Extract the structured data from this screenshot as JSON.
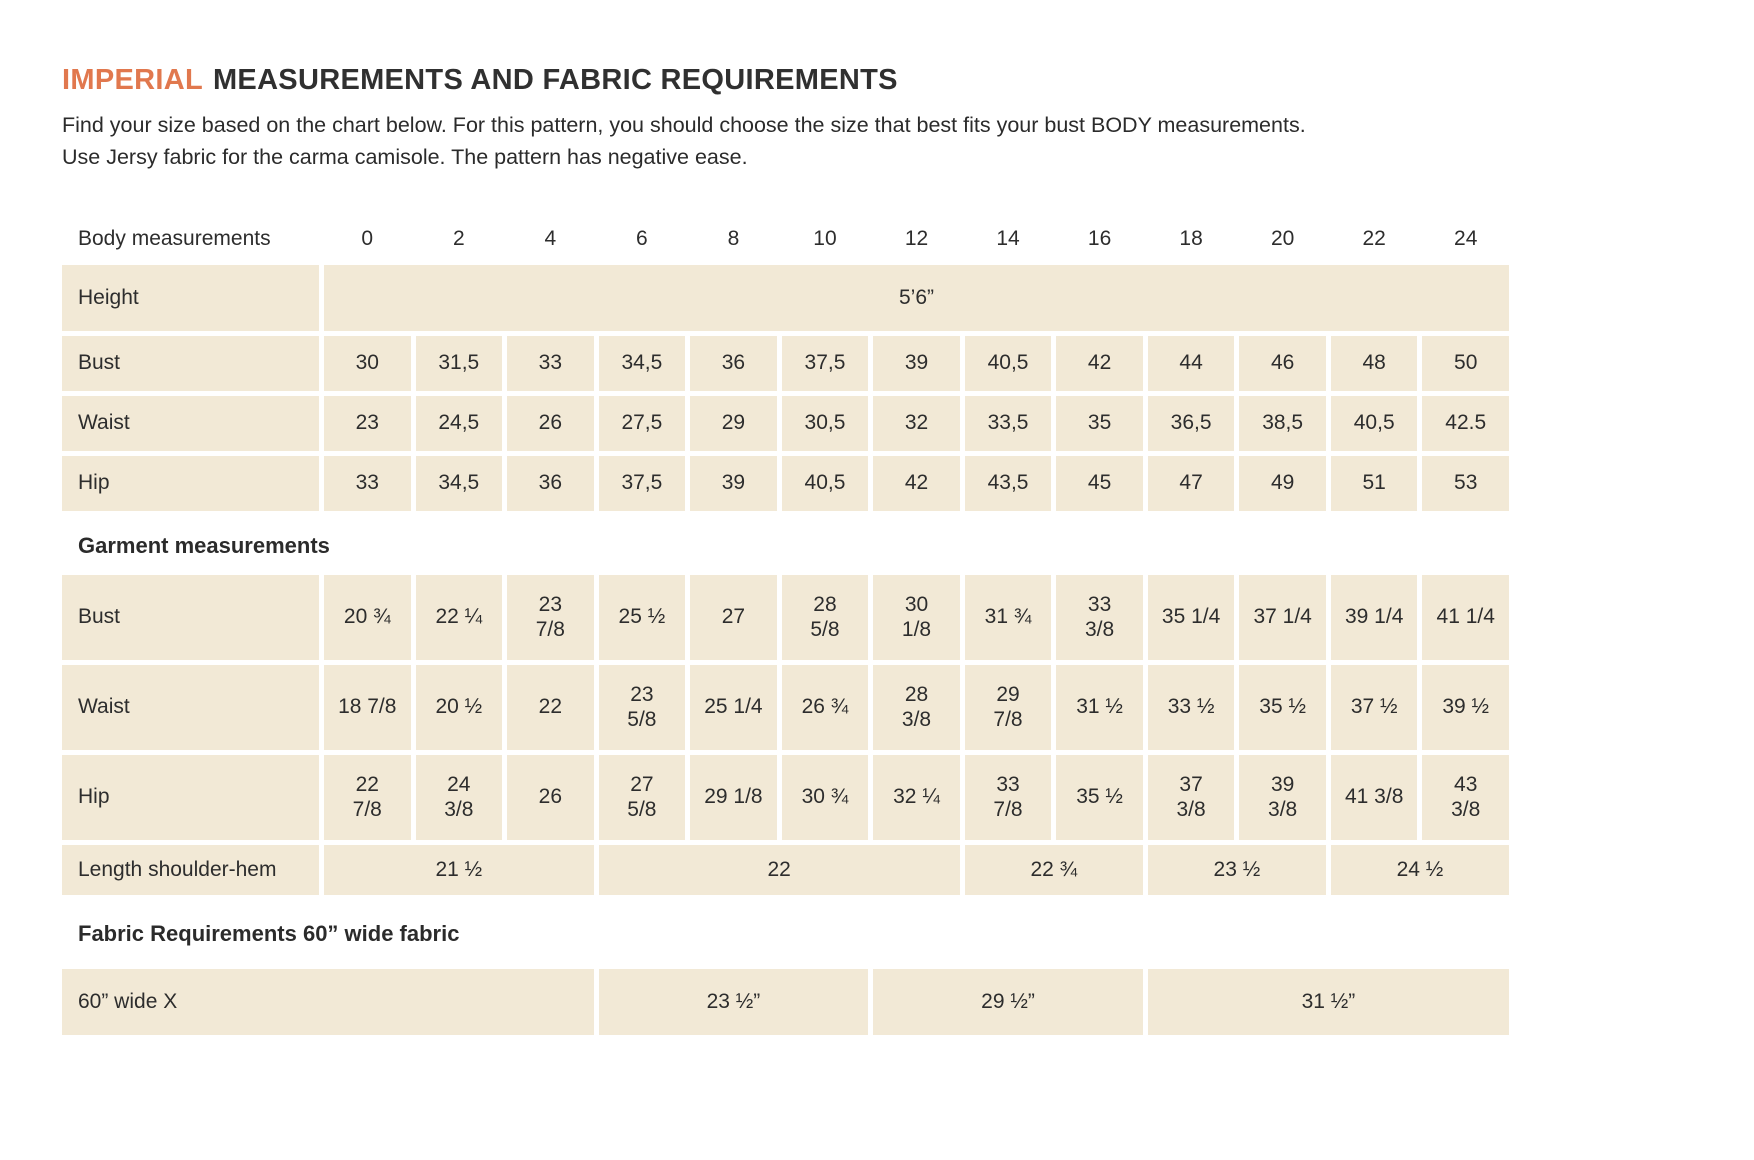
{
  "colors": {
    "accent": "#E1784E",
    "cell_bg": "#F2E9D6",
    "text": "#2D2D2D"
  },
  "header": {
    "title_accent": "IMPERIAL",
    "title_rest": "MEASUREMENTS AND FABRIC REQUIREMENTS",
    "intro_line1": "Find your size based on the chart below. For this pattern, you should choose the size that best fits your bust BODY measurements.",
    "intro_line2": "Use Jersy fabric for the carma camisole. The pattern has negative ease."
  },
  "table": {
    "header_label": "Body measurements",
    "sizes": [
      "0",
      "2",
      "4",
      "6",
      "8",
      "10",
      "12",
      "14",
      "16",
      "18",
      "20",
      "22",
      "24"
    ],
    "body_rows": [
      {
        "label": "Height",
        "merged": "5’6”"
      },
      {
        "label": "Bust",
        "values": [
          "30",
          "31,5",
          "33",
          "34,5",
          "36",
          "37,5",
          "39",
          "40,5",
          "42",
          "44",
          "46",
          "48",
          "50"
        ]
      },
      {
        "label": "Waist",
        "values": [
          "23",
          "24,5",
          "26",
          "27,5",
          "29",
          "30,5",
          "32",
          "33,5",
          "35",
          "36,5",
          "38,5",
          "40,5",
          "42.5"
        ]
      },
      {
        "label": "Hip",
        "values": [
          "33",
          "34,5",
          "36",
          "37,5",
          "39",
          "40,5",
          "42",
          "43,5",
          "45",
          "47",
          "49",
          "51",
          "53"
        ]
      }
    ],
    "garment_section_label": "Garment measurements",
    "garment_rows": [
      {
        "label": "Bust",
        "values": [
          "20 ¾",
          "22 ¼",
          "23\n7/8",
          "25 ½",
          "27",
          "28\n5/8",
          "30\n1/8",
          "31 ¾",
          "33\n3/8",
          "35 1/4",
          "37 1/4",
          "39 1/4",
          "41 1/4"
        ]
      },
      {
        "label": "Waist",
        "values": [
          "18 7/8",
          "20 ½",
          "22",
          "23\n5/8",
          "25 1/4",
          "26 ¾",
          "28\n3/8",
          "29\n7/8",
          "31 ½",
          "33 ½",
          "35 ½",
          "37 ½",
          "39 ½"
        ]
      },
      {
        "label": "Hip",
        "values": [
          "22\n7/8",
          "24\n3/8",
          "26",
          "27\n5/8",
          "29 1/8",
          "30 ¾",
          "32 ¼",
          "33\n7/8",
          "35 ½",
          "37\n3/8",
          "39\n3/8",
          "41 3/8",
          "43\n3/8"
        ]
      }
    ],
    "length_row": {
      "label": "Length shoulder-hem",
      "segments": [
        {
          "text": "21 ½",
          "span": 3
        },
        {
          "text": "22",
          "span": 4
        },
        {
          "text": "22 ¾",
          "span": 2
        },
        {
          "text": "23 ½",
          "span": 2
        },
        {
          "text": "24 ½",
          "span": 2
        }
      ]
    },
    "fabric_section_label": "Fabric Requirements 60” wide fabric",
    "fabric_row": {
      "label": "60” wide X",
      "segments": [
        {
          "text": "23 ½”",
          "span": 3
        },
        {
          "text": "29 ½”",
          "span": 3
        },
        {
          "text": "31 ½”",
          "span": 4
        }
      ]
    }
  }
}
